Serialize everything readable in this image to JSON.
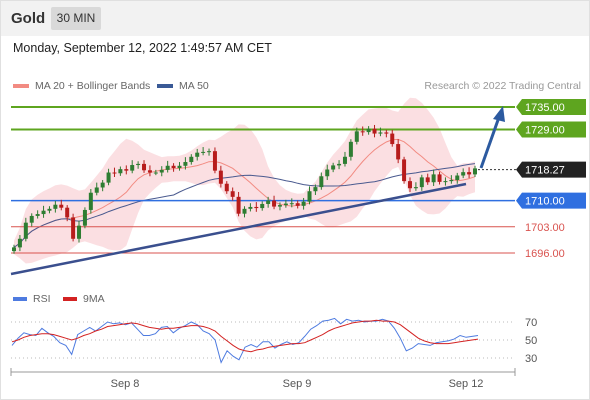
{
  "header": {
    "symbol": "Gold",
    "timeframe": "30 MIN",
    "datetime": "Monday, September 12, 2022 1:49:57 AM CET"
  },
  "legend": {
    "ma20_bb": "MA 20 + Bollinger Bands",
    "ma50": "MA 50",
    "credit": "Research © 2022 Trading Central",
    "rsi": "RSI",
    "ma9": "9MA"
  },
  "colors": {
    "resistance": "#5ea51f",
    "support": "#d9534f",
    "pivot": "#2f6fe0",
    "trend": "#3a4f8e",
    "arrow": "#2c5aa0",
    "candle_up": "#2e7d32",
    "candle_down": "#b71c1c",
    "bb_fill": "#f9c9cf",
    "ma50": "#4a5a8f",
    "rsi_line": "#4e7be0",
    "ma9_line": "#d32222"
  },
  "chart_data": [
    {
      "type": "candlestick",
      "title": "",
      "price_range": [
        1690,
        1740
      ],
      "x_ticks": [
        "Sep 8",
        "Sep 9",
        "Sep 12"
      ],
      "last_price": 1718.27,
      "resistance_levels": [
        1735.0,
        1729.0
      ],
      "pivot_level": 1710.0,
      "support_levels": [
        1703.0,
        1696.0
      ],
      "level_labels": {
        "r2": "1735.00",
        "r1": "1729.00",
        "last": "1718.27",
        "pivot": "1710.00",
        "s1": "1703.00",
        "s2": "1696.00"
      },
      "close_series": [
        1697.5,
        1699.8,
        1704.1,
        1705.9,
        1706.4,
        1707.3,
        1707.8,
        1708.9,
        1708.1,
        1705.5,
        1699.8,
        1703.3,
        1707.5,
        1712.1,
        1713.5,
        1714.8,
        1717.5,
        1717.3,
        1718.4,
        1718.0,
        1719.5,
        1719.8,
        1718.1,
        1717.5,
        1717.5,
        1718.2,
        1719.3,
        1718.7,
        1719.3,
        1720.3,
        1721.7,
        1722.8,
        1723.0,
        1723.2,
        1718.0,
        1714.5,
        1712.5,
        1711.0,
        1706.5,
        1707.8,
        1708.3,
        1708.0,
        1709.1,
        1710.0,
        1708.4,
        1708.8,
        1709.2,
        1709.3,
        1708.6,
        1709.7,
        1712.5,
        1713.6,
        1716.5,
        1718.3,
        1719.4,
        1719.8,
        1721.7,
        1725.7,
        1728.5,
        1728.3,
        1729.2,
        1727.9,
        1728.2,
        1727.9,
        1725.1,
        1721.0,
        1715.2,
        1713.3,
        1713.6,
        1716.2,
        1714.9,
        1717.0,
        1715.0,
        1715.2,
        1715.5,
        1716.7,
        1717.6,
        1717.0,
        1718.6
      ]
    },
    {
      "type": "line",
      "title": "",
      "ylim": [
        20,
        80
      ],
      "y_ticks": [
        70,
        50,
        30
      ],
      "series": [
        {
          "name": "RSI",
          "values": [
            44,
            52,
            58,
            56,
            55,
            63,
            58,
            54,
            47,
            44,
            34,
            56,
            60,
            64,
            60,
            65,
            70,
            68,
            69,
            67,
            69,
            62,
            55,
            55,
            57,
            64,
            65,
            58,
            63,
            66,
            70,
            67,
            60,
            57,
            50,
            25,
            38,
            32,
            28,
            42,
            45,
            42,
            48,
            48,
            41,
            45,
            48,
            45,
            47,
            54,
            62,
            66,
            71,
            72,
            74,
            68,
            73,
            71,
            72,
            70,
            71,
            71,
            73,
            71,
            63,
            52,
            38,
            41,
            46,
            45,
            44,
            47,
            48,
            49,
            51,
            55,
            53,
            54,
            55
          ]
        },
        {
          "name": "9MA",
          "values": [
            48,
            50,
            53,
            55,
            56,
            57,
            57,
            56,
            54,
            52,
            50,
            52,
            55,
            57,
            60,
            62,
            65,
            66,
            67,
            68,
            69,
            68,
            66,
            64,
            63,
            62,
            63,
            63,
            64,
            65,
            66,
            66,
            65,
            63,
            60,
            54,
            49,
            44,
            40,
            38,
            37,
            39,
            40,
            42,
            43,
            44,
            45,
            46,
            46,
            47,
            50,
            53,
            56,
            60,
            63,
            65,
            67,
            69,
            70,
            71,
            71,
            72,
            71,
            71,
            70,
            67,
            62,
            57,
            52,
            49,
            47,
            46,
            46,
            46,
            47,
            48,
            49,
            50,
            51
          ]
        }
      ]
    }
  ]
}
